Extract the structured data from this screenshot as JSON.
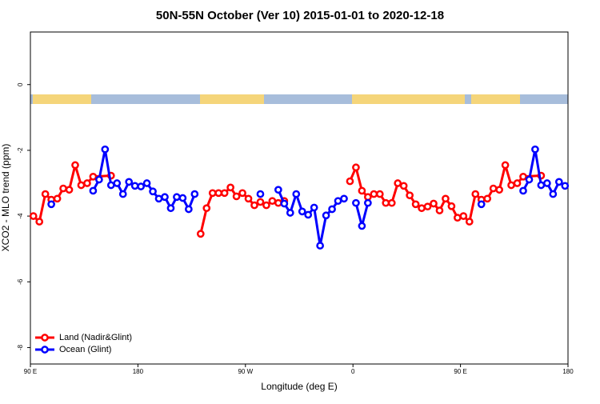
{
  "chart_data": {
    "type": "line",
    "title": "50N-55N October (Ver 10)   2015-01-01 to 2020-12-18",
    "x_label": "Longitude (deg E)",
    "y_label": "XCO2 - MLO trend (ppm)",
    "xlim": [
      90,
      540
    ],
    "ylim": [
      -8.5,
      1.6
    ],
    "xticks": [
      {
        "value": 90,
        "label": "90 E"
      },
      180,
      {
        "value": 270,
        "label": "90 W"
      },
      {
        "value": 360,
        "label": "0"
      },
      {
        "value": 450,
        "label": "90 E"
      },
      {
        "value": 540,
        "label": "180"
      }
    ],
    "yticks": [
      0,
      -2,
      -4,
      -6,
      -8
    ],
    "legend": "bottom-left",
    "series": [
      {
        "name": "Land (Nadir&Glint)",
        "color": "#ff0000",
        "x": [
          92.5,
          97.5,
          102.5,
          107.5,
          112.5,
          117.5,
          122.5,
          127.5,
          132.5,
          137.5,
          142.5,
          157.5,
          162.5,
          232.5,
          237.5,
          242.5,
          247.5,
          252.5,
          257.5,
          262.5,
          267.5,
          272.5,
          277.5,
          282.5,
          287.5,
          292.5,
          297.5,
          302.5,
          307.5,
          357.5,
          362.5,
          367.5,
          372.5,
          377.5,
          382.5,
          387.5,
          392.5,
          397.5,
          402.5,
          407.5,
          412.5,
          417.5,
          422.5,
          427.5,
          432.5,
          437.5,
          442.5,
          447.5,
          452.5,
          457.5,
          462.5,
          467.5,
          472.5,
          477.5,
          482.5,
          487.5,
          492.5,
          497.5,
          502.5,
          517.5
        ],
        "values": [
          -4.0,
          -4.17,
          -3.33,
          -3.5,
          -3.47,
          -3.16,
          -3.2,
          -2.45,
          -3.06,
          -3.0,
          -2.8,
          -2.77,
          null,
          -4.54,
          -3.76,
          -3.3,
          -3.3,
          -3.3,
          -3.13,
          -3.4,
          -3.3,
          -3.47,
          -3.67,
          -3.57,
          -3.67,
          -3.54,
          -3.6,
          -3.54,
          null,
          -2.94,
          -2.52,
          -3.23,
          -3.42,
          -3.33,
          -3.33,
          -3.6,
          -3.6,
          -3.0,
          -3.08,
          -3.37,
          -3.64,
          -3.76,
          -3.71,
          -3.62,
          -3.83,
          -3.47,
          -3.7,
          -4.05,
          -4.0,
          -4.17,
          -3.33,
          -3.5,
          -3.47,
          -3.16,
          -3.2,
          -2.45,
          -3.06,
          -3.0,
          -2.8,
          -2.77
        ]
      },
      {
        "name": "Ocean (Glint)",
        "color": "#0000ff",
        "x": [
          107.5,
          112.5,
          142.5,
          147.5,
          152.5,
          157.5,
          162.5,
          167.5,
          172.5,
          177.5,
          182.5,
          187.5,
          192.5,
          197.5,
          202.5,
          207.5,
          212.5,
          217.5,
          222.5,
          227.5,
          232.5,
          282.5,
          287.5,
          297.5,
          302.5,
          307.5,
          312.5,
          317.5,
          322.5,
          327.5,
          332.5,
          337.5,
          342.5,
          347.5,
          352.5,
          357.5,
          362.5,
          367.5,
          372.5,
          377.5,
          467.5,
          472.5,
          502.5,
          507.5,
          512.5,
          517.5,
          522.5,
          527.5,
          532.5,
          537.5
        ],
        "values": [
          -3.64,
          null,
          -3.23,
          -2.89,
          -1.97,
          -3.06,
          -3.0,
          -3.33,
          -2.96,
          -3.08,
          -3.1,
          -3.0,
          -3.25,
          -3.47,
          -3.42,
          -3.76,
          -3.42,
          -3.45,
          -3.79,
          -3.33,
          null,
          -3.33,
          null,
          -3.2,
          -3.62,
          -3.9,
          -3.33,
          -3.86,
          -3.96,
          -3.74,
          -4.9,
          -3.98,
          -3.79,
          -3.54,
          -3.47,
          null,
          -3.6,
          -4.3,
          -3.6,
          null,
          -3.64,
          null,
          -3.23,
          -2.89,
          -1.97,
          -3.06,
          -3.0,
          -3.33,
          -2.96,
          -3.08
        ]
      }
    ]
  }
}
